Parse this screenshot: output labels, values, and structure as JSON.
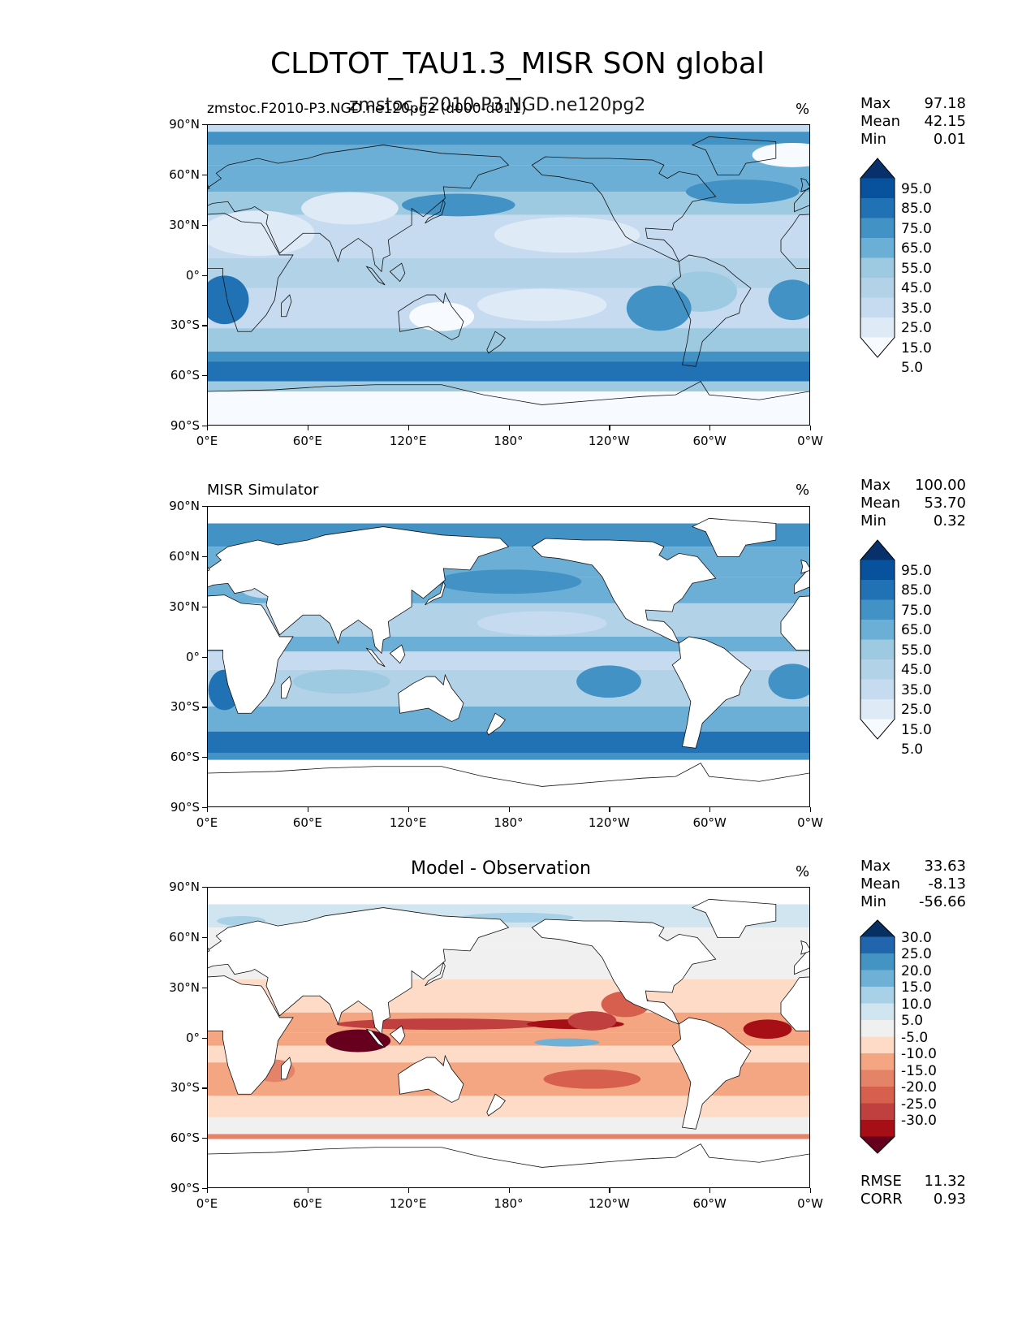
{
  "figure": {
    "title": "CLDTOT_TAU1.3_MISR SON global",
    "overlapping_subtitle": "zmstoc.F2010-P3.NGD.ne120pg2"
  },
  "icons": [
    "coastline-map",
    "colorbar-extend-arrows"
  ],
  "colors": {
    "blues": [
      "#f7fbff",
      "#deebf7",
      "#c6dbef",
      "#b2d2e8",
      "#9ecae1",
      "#6baed6",
      "#4292c6",
      "#2171b5",
      "#08519c",
      "#08306b"
    ],
    "rdbu_neg": [
      "#67001f",
      "#a50f15",
      "#c03f3f",
      "#d6604d",
      "#e58368",
      "#f4a582",
      "#fddbc7"
    ],
    "rdbu_pos": [
      "#f0f0f0",
      "#d1e5f0",
      "#a8d0e6",
      "#6fb0d6",
      "#4393c3",
      "#2166ac",
      "#053061"
    ]
  },
  "chart_data": [
    {
      "type": "heatmap",
      "id": "model",
      "left_title": "zmstoc.F2010-P3.NGD.ne120pg2 (d000-d011)",
      "right_title": "%",
      "stats": {
        "Max": "97.18",
        "Mean": "42.15",
        "Min": "0.01"
      },
      "levels": [
        "95.0",
        "85.0",
        "75.0",
        "65.0",
        "55.0",
        "45.0",
        "35.0",
        "25.0",
        "15.0",
        "5.0"
      ],
      "colormap": "blues",
      "ylim": [
        -90,
        90
      ],
      "xlim": [
        0,
        360
      ],
      "yticks": [
        "90°N",
        "60°N",
        "30°N",
        "0°",
        "30°S",
        "60°S",
        "90°S"
      ],
      "xticks": [
        "0°E",
        "60°E",
        "120°E",
        "180°",
        "120°W",
        "60°W",
        "0°W"
      ]
    },
    {
      "type": "heatmap",
      "id": "obs",
      "left_title": "MISR Simulator",
      "right_title": "%",
      "stats": {
        "Max": "100.00",
        "Mean": "53.70",
        "Min": "0.32"
      },
      "levels": [
        "95.0",
        "85.0",
        "75.0",
        "65.0",
        "55.0",
        "45.0",
        "35.0",
        "25.0",
        "15.0",
        "5.0"
      ],
      "colormap": "blues",
      "ylim": [
        -90,
        90
      ],
      "xlim": [
        0,
        360
      ],
      "yticks": [
        "90°N",
        "60°N",
        "30°N",
        "0°",
        "30°S",
        "60°S",
        "90°S"
      ],
      "xticks": [
        "0°E",
        "60°E",
        "120°E",
        "180°",
        "120°W",
        "60°W",
        "0°W"
      ]
    },
    {
      "type": "heatmap",
      "id": "diff",
      "center_title": "Model - Observation",
      "right_title": "%",
      "stats": {
        "Max": "33.63",
        "Mean": "-8.13",
        "Min": "-56.66"
      },
      "levels": [
        "30.0",
        "25.0",
        "20.0",
        "15.0",
        "10.0",
        "5.0",
        "-5.0",
        "-10.0",
        "-15.0",
        "-20.0",
        "-25.0",
        "-30.0"
      ],
      "colormap": "rdbu",
      "ylim": [
        -90,
        90
      ],
      "xlim": [
        0,
        360
      ],
      "yticks": [
        "90°N",
        "60°N",
        "30°N",
        "0°",
        "30°S",
        "60°S",
        "90°S"
      ],
      "xticks": [
        "0°E",
        "60°E",
        "120°E",
        "180°",
        "120°W",
        "60°W",
        "0°W"
      ],
      "metrics": {
        "RMSE": "11.32",
        "CORR": "0.93"
      }
    }
  ]
}
